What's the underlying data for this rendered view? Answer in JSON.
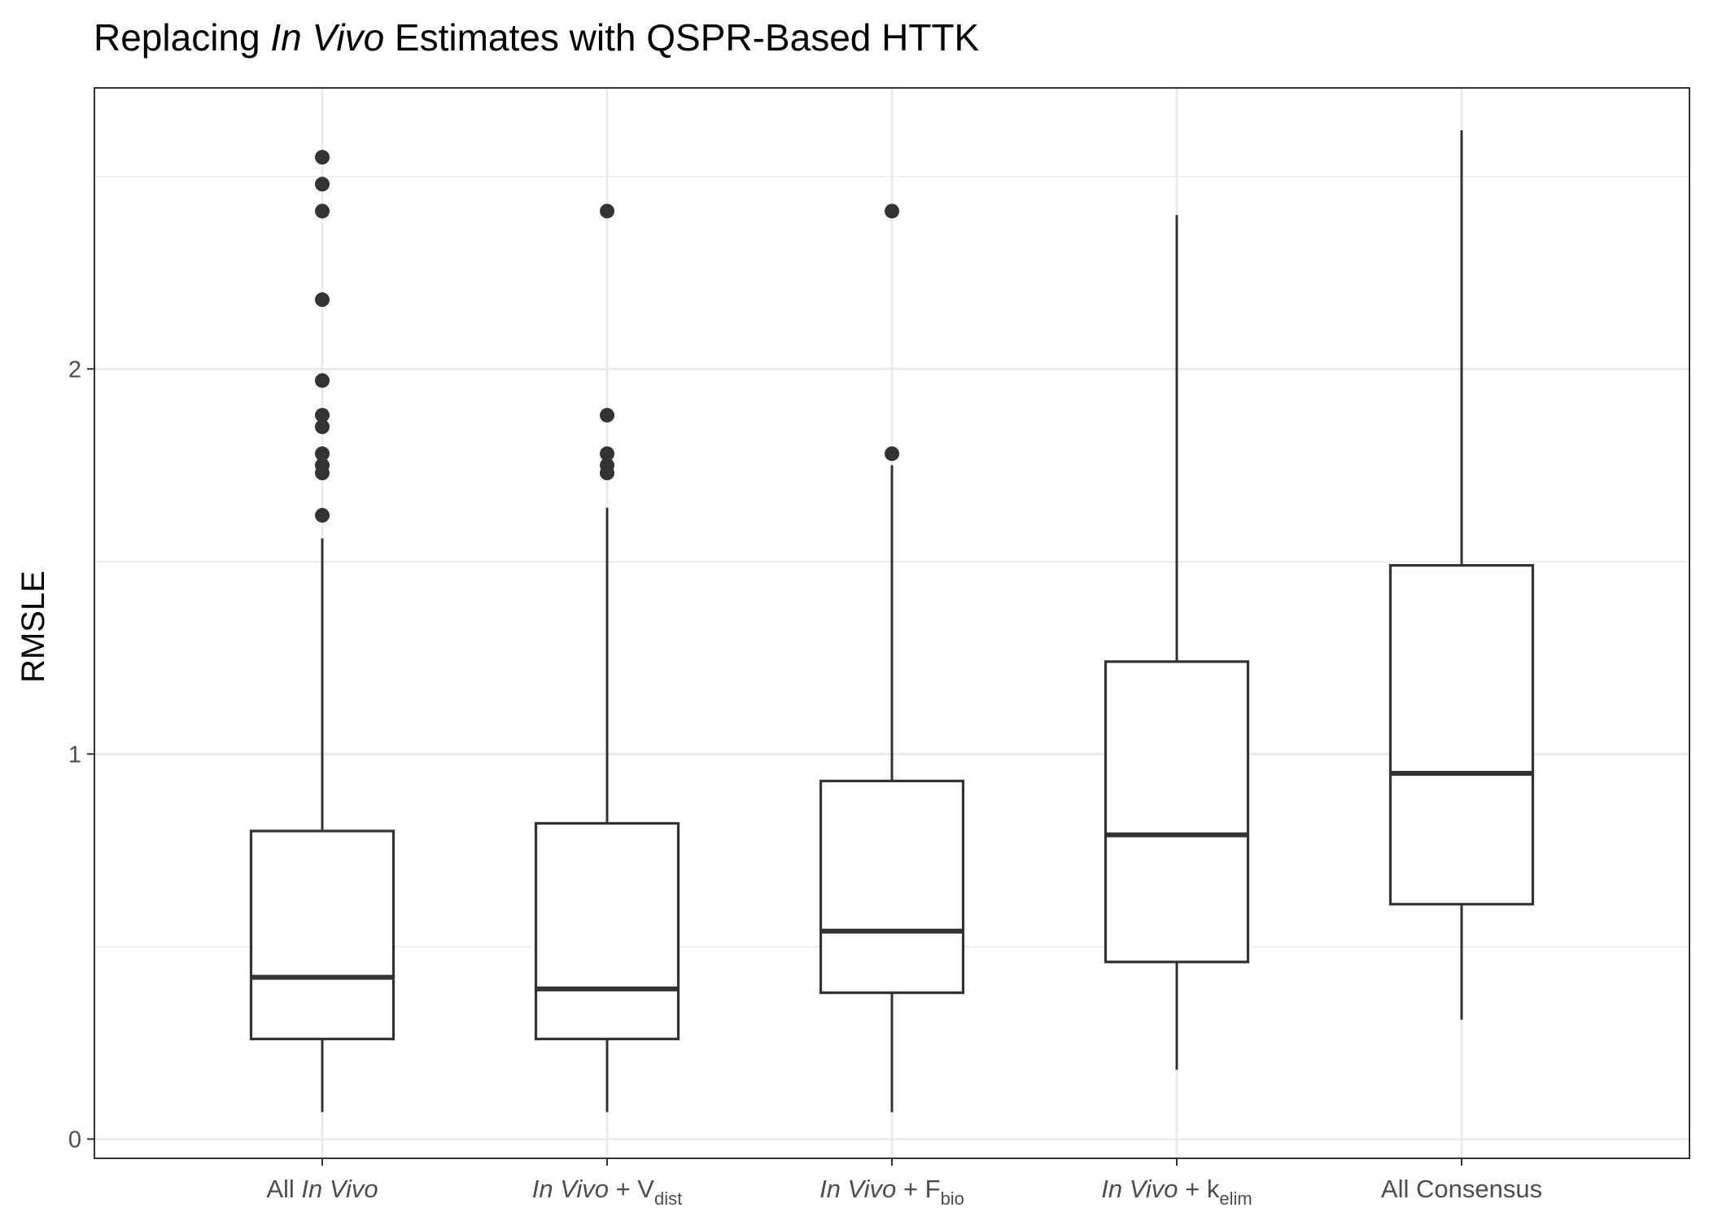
{
  "chart_data": {
    "type": "boxplot",
    "title": {
      "pre": "Replacing ",
      "italic": "In Vivo",
      "post": " Estimates with QSPR-Based HTTK"
    },
    "ylabel": "RMSLE",
    "xlabel": "",
    "ylim": [
      -0.05,
      2.73
    ],
    "yticks": [
      0,
      1,
      2
    ],
    "grid": true,
    "categories": [
      {
        "italic": "",
        "plain": "All ",
        "italic2": "In Vivo",
        "rest": "",
        "sub": ""
      },
      {
        "italic": "In Vivo",
        "plain": "",
        "italic2": "",
        "rest": " + V",
        "sub": "dist"
      },
      {
        "italic": "In Vivo",
        "plain": "",
        "italic2": "",
        "rest": " + F",
        "sub": "bio"
      },
      {
        "italic": "In Vivo",
        "plain": "",
        "italic2": "",
        "rest": " + k",
        "sub": "elim"
      },
      {
        "italic": "",
        "plain": "All Consensus",
        "italic2": "",
        "rest": "",
        "sub": ""
      }
    ],
    "boxes": [
      {
        "whisker_low": 0.07,
        "q1": 0.26,
        "median": 0.42,
        "q3": 0.8,
        "whisker_high": 1.56,
        "outliers": [
          2.55,
          2.48,
          2.41,
          2.18,
          1.97,
          1.88,
          1.85,
          1.78,
          1.75,
          1.73,
          1.62
        ]
      },
      {
        "whisker_low": 0.07,
        "q1": 0.26,
        "median": 0.39,
        "q3": 0.82,
        "whisker_high": 1.64,
        "outliers": [
          2.41,
          1.88,
          1.78,
          1.75,
          1.73
        ]
      },
      {
        "whisker_low": 0.07,
        "q1": 0.38,
        "median": 0.54,
        "q3": 0.93,
        "whisker_high": 1.75,
        "outliers": [
          2.41,
          1.78
        ]
      },
      {
        "whisker_low": 0.18,
        "q1": 0.46,
        "median": 0.79,
        "q3": 1.24,
        "whisker_high": 2.4,
        "outliers": []
      },
      {
        "whisker_low": 0.31,
        "q1": 0.61,
        "median": 0.95,
        "q3": 1.49,
        "whisker_high": 2.62,
        "outliers": []
      }
    ]
  }
}
